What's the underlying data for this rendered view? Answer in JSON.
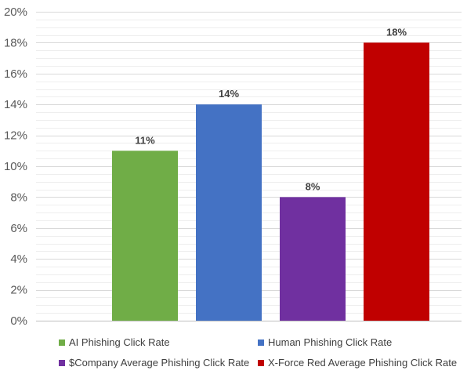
{
  "chart_data": {
    "type": "bar",
    "categories": [
      "AI Phishing Click Rate",
      "Human Phishing Click Rate",
      "$Company Average Phishing Click Rate",
      "X-Force Red Average Phishing Click Rate"
    ],
    "values": [
      11,
      14,
      8,
      18
    ],
    "data_labels": [
      "11%",
      "14%",
      "8%",
      "18%"
    ],
    "colors": [
      "#70ad47",
      "#4472c4",
      "#7030a0",
      "#c00000"
    ],
    "ylim": [
      0,
      20
    ],
    "yticks": [
      "0%",
      "2%",
      "4%",
      "6%",
      "8%",
      "10%",
      "12%",
      "14%",
      "16%",
      "18%",
      "20%"
    ],
    "grid": true,
    "legend_position": "bottom",
    "title": "",
    "xlabel": "",
    "ylabel": ""
  }
}
